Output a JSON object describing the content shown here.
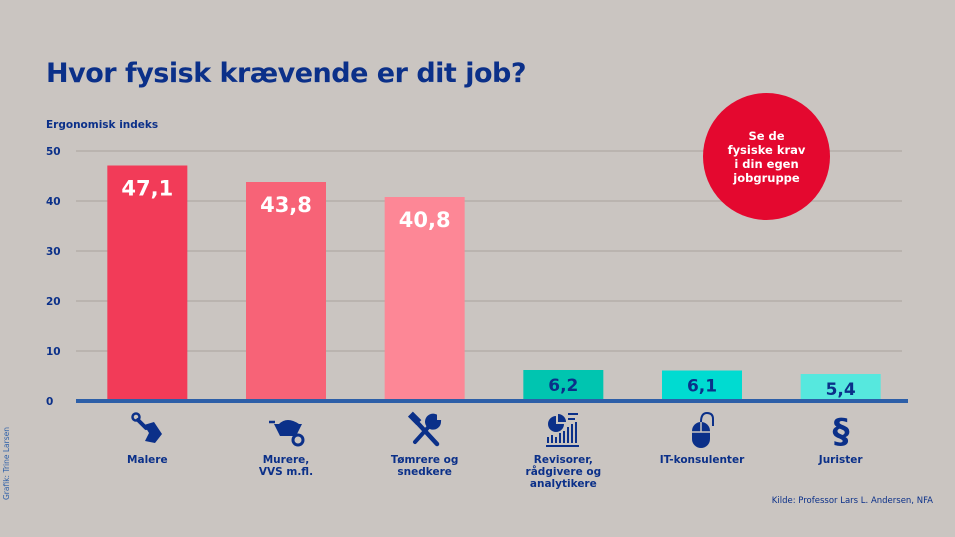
{
  "title": "Hvor fysisk krævende er dit job?",
  "badge": {
    "text": "Se de\nfysiske krav\ni din egen\njobgruppe",
    "color": "#e4082f"
  },
  "source": "Kilde: Professor Lars L. Andersen, NFA",
  "credit": "Grafik: Trine Larsen",
  "chart_data": {
    "type": "bar",
    "title": "Hvor fysisk krævende er dit job?",
    "xlabel": "",
    "ylabel": "Ergonomisk indeks",
    "ylim": [
      0,
      50
    ],
    "yticks": [
      0,
      10,
      20,
      30,
      40,
      50
    ],
    "grid": true,
    "categories": [
      "Malere",
      "Murere,\nVVS m.fl.",
      "Tømrere og\nsnedkere",
      "Revisorer,\nrådgivere og\nanalytikere",
      "IT-konsulenter",
      "Jurister"
    ],
    "values": [
      47.1,
      43.8,
      40.8,
      6.2,
      6.1,
      5.4
    ],
    "data_labels": [
      "47,1",
      "43,8",
      "40,8",
      "6,2",
      "6,1",
      "5,4"
    ],
    "bar_colors": [
      "#f23b58",
      "#f76377",
      "#fd8796",
      "#00c5b0",
      "#00dbd1",
      "#56e8de"
    ],
    "label_colors": [
      "#ffffff",
      "#ffffff",
      "#ffffff",
      "#0b3089",
      "#0b3089",
      "#0b3089"
    ],
    "icons": [
      "paintbrush-icon",
      "wheelbarrow-icon",
      "hammer-wrench-icon",
      "chart-report-icon",
      "computer-mouse-icon",
      "paragraph-icon"
    ],
    "axis_color": "#2d5fa8",
    "grid_color": "#b0aaa5"
  }
}
